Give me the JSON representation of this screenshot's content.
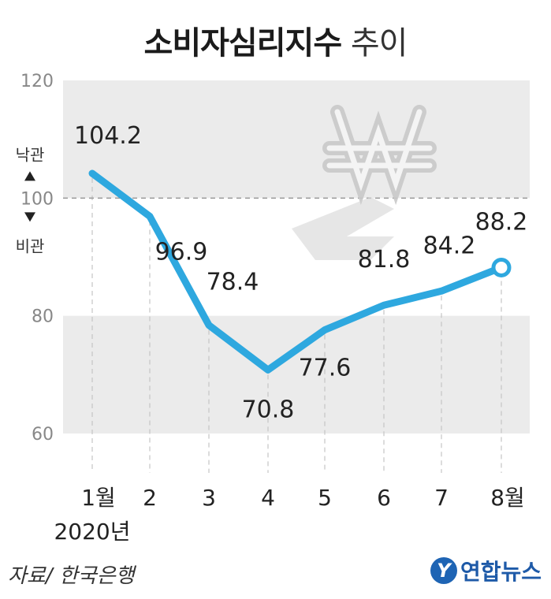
{
  "title_bold": "소비자심리지수",
  "title_light": "추이",
  "side_labels": {
    "optimism": "낙관",
    "pessimism": "비관"
  },
  "year_label": "2020년",
  "source": "자료/ 한국은행",
  "logo_text": "연합뉴스",
  "logo_mark": "Y",
  "colors": {
    "line": "#2ea8df",
    "band": "#ebebeb",
    "reference": "#9a9a9a"
  },
  "chart_data": {
    "type": "line",
    "categories": [
      "1월",
      "2",
      "3",
      "4",
      "5",
      "6",
      "7",
      "8월"
    ],
    "values": [
      104.2,
      96.9,
      78.4,
      70.8,
      77.6,
      81.8,
      84.2,
      88.2
    ],
    "value_labels": [
      "104.2",
      "96.9",
      "78.4",
      "70.8",
      "77.6",
      "81.8",
      "84.2",
      "88.2"
    ],
    "ylim": [
      60,
      120
    ],
    "yticks": [
      60,
      80,
      100,
      120
    ],
    "reference_line": 100,
    "bands": [
      [
        100,
        120
      ],
      [
        60,
        80
      ]
    ],
    "grid": "vertical dashed",
    "legend": "none"
  }
}
